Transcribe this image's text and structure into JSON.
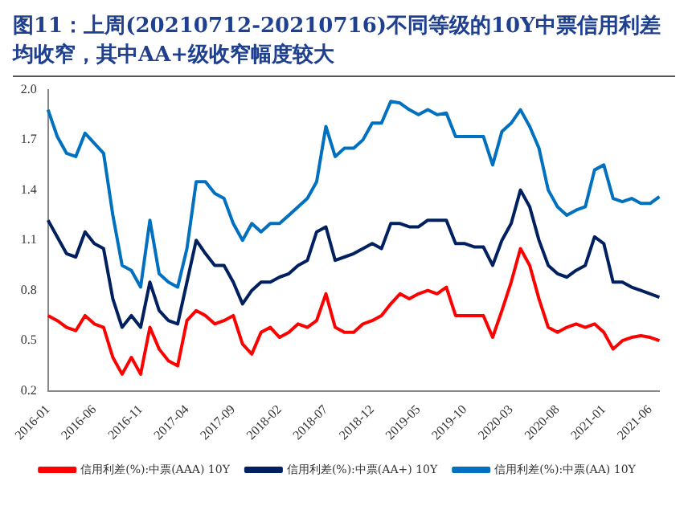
{
  "chart_data": {
    "type": "line",
    "title": "图11：上周(20210712-20210716)不同等级的10Y中票信用利差均收窄，其中AA+级收窄幅度较大",
    "categories": [
      "2016-01",
      null,
      null,
      null,
      null,
      "2016-06",
      null,
      null,
      null,
      null,
      "2016-11",
      null,
      null,
      null,
      null,
      "2017-04",
      null,
      null,
      null,
      null,
      "2017-09",
      null,
      null,
      null,
      null,
      "2018-02",
      null,
      null,
      null,
      null,
      "2018-07",
      null,
      null,
      null,
      null,
      "2018-12",
      null,
      null,
      null,
      null,
      "2019-05",
      null,
      null,
      null,
      null,
      "2019-10",
      null,
      null,
      null,
      null,
      "2020-03",
      null,
      null,
      null,
      null,
      "2020-08",
      null,
      null,
      null,
      null,
      "2021-01",
      null,
      null,
      null,
      null,
      "2021-06",
      null
    ],
    "series": [
      {
        "name": "信用利差(%):中票(AAA) 10Y",
        "color": "#ff0000",
        "values": [
          0.65,
          0.62,
          0.58,
          0.56,
          0.65,
          0.6,
          0.58,
          0.4,
          0.3,
          0.4,
          0.3,
          0.58,
          0.45,
          0.38,
          0.35,
          0.62,
          0.68,
          0.65,
          0.6,
          0.62,
          0.65,
          0.48,
          0.42,
          0.55,
          0.58,
          0.52,
          0.55,
          0.6,
          0.58,
          0.62,
          0.78,
          0.58,
          0.55,
          0.55,
          0.6,
          0.62,
          0.65,
          0.72,
          0.78,
          0.75,
          0.78,
          0.8,
          0.78,
          0.82,
          0.65,
          0.65,
          0.65,
          0.65,
          0.52,
          0.68,
          0.85,
          1.05,
          0.95,
          0.75,
          0.58,
          0.55,
          0.58,
          0.6,
          0.58,
          0.6,
          0.55,
          0.45,
          0.5,
          0.52,
          0.53,
          0.52,
          0.5
        ]
      },
      {
        "name": "信用利差(%):中票(AA+) 10Y",
        "color": "#002060",
        "values": [
          1.22,
          1.12,
          1.02,
          1.0,
          1.15,
          1.08,
          1.05,
          0.75,
          0.58,
          0.65,
          0.58,
          0.85,
          0.68,
          0.62,
          0.6,
          0.85,
          1.1,
          1.02,
          0.95,
          0.95,
          0.85,
          0.72,
          0.8,
          0.85,
          0.85,
          0.88,
          0.9,
          0.95,
          0.98,
          1.15,
          1.18,
          0.98,
          1.0,
          1.02,
          1.05,
          1.08,
          1.05,
          1.2,
          1.2,
          1.18,
          1.18,
          1.22,
          1.22,
          1.22,
          1.08,
          1.08,
          1.06,
          1.06,
          0.95,
          1.1,
          1.2,
          1.4,
          1.3,
          1.1,
          0.95,
          0.9,
          0.88,
          0.92,
          0.95,
          1.12,
          1.08,
          0.85,
          0.85,
          0.82,
          0.8,
          0.78,
          0.76
        ]
      },
      {
        "name": "信用利差(%):中票(AA) 10Y",
        "color": "#0070c0",
        "values": [
          1.88,
          1.72,
          1.62,
          1.6,
          1.74,
          1.68,
          1.62,
          1.25,
          0.95,
          0.92,
          0.82,
          1.22,
          0.9,
          0.85,
          0.82,
          1.05,
          1.45,
          1.45,
          1.38,
          1.35,
          1.2,
          1.1,
          1.2,
          1.15,
          1.2,
          1.2,
          1.25,
          1.3,
          1.35,
          1.45,
          1.78,
          1.6,
          1.65,
          1.65,
          1.7,
          1.8,
          1.8,
          1.93,
          1.92,
          1.88,
          1.85,
          1.88,
          1.85,
          1.86,
          1.72,
          1.72,
          1.72,
          1.72,
          1.55,
          1.75,
          1.8,
          1.88,
          1.78,
          1.65,
          1.4,
          1.3,
          1.25,
          1.28,
          1.3,
          1.52,
          1.55,
          1.35,
          1.33,
          1.35,
          1.32,
          1.32,
          1.36
        ]
      }
    ],
    "ylim": [
      0.2,
      2.0
    ],
    "yticks": [
      0.2,
      0.5,
      0.8,
      1.1,
      1.4,
      1.7,
      {
        "value": 2,
        "label": "2.0"
      }
    ],
    "grid": false,
    "legend": "bottom",
    "marker": "none",
    "line_style": "solid"
  }
}
